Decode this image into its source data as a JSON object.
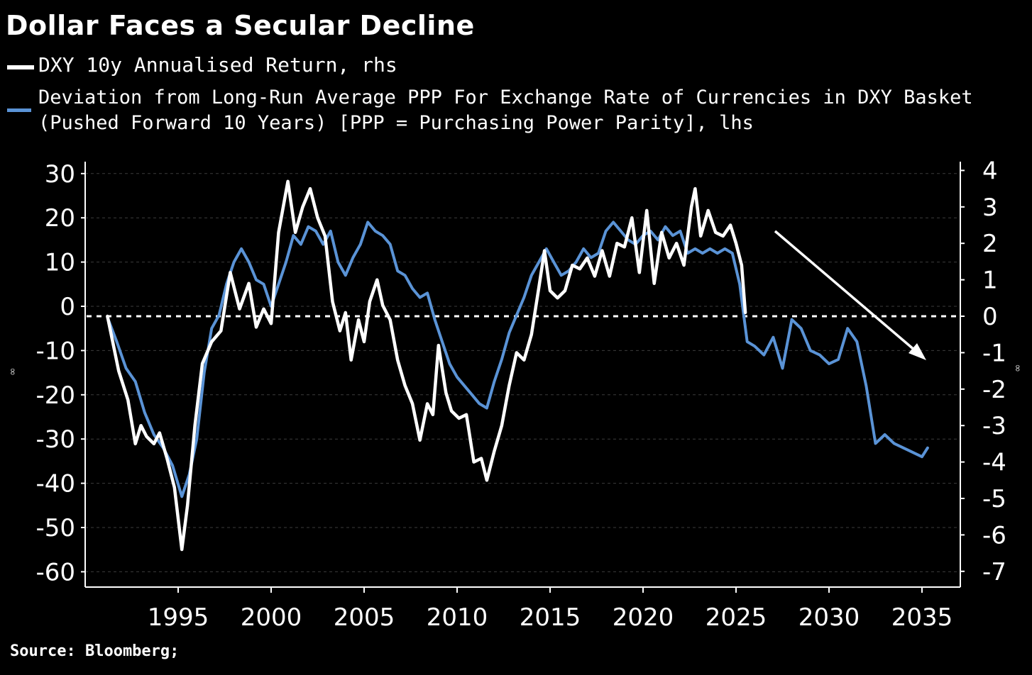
{
  "title": "Dollar Faces a Secular Decline",
  "source": "Source: Bloomberg;",
  "colors": {
    "background": "#000000",
    "white_series": "#ffffff",
    "blue_series": "#5a93d6",
    "grid": "#3c3c3c",
    "zero_line": "#ffffff",
    "arrow": "#ffffff"
  },
  "legend": [
    {
      "label": "DXY 10y Annualised Return, rhs",
      "color": "#ffffff"
    },
    {
      "label": "Deviation from Long-Run Average PPP For Exchange Rate of Currencies in DXY Basket (Pushed Forward 10 Years) [PPP = Purchasing Power Parity], lhs",
      "color": "#5a93d6"
    }
  ],
  "chart_data": {
    "type": "line",
    "title": "Dollar Faces a Secular Decline",
    "grid": true,
    "legend_position": "top-left",
    "x_range": [
      1991,
      2037
    ],
    "x_ticks": [
      1995,
      2000,
      2005,
      2010,
      2015,
      2020,
      2025,
      2030,
      2035
    ],
    "y_left": {
      "ticks": [
        30,
        20,
        10,
        0,
        -10,
        -20,
        -30,
        -40,
        -50,
        -60
      ],
      "range": [
        -63,
        32
      ]
    },
    "y_right": {
      "ticks": [
        4,
        3,
        2,
        1,
        0,
        -1,
        -2,
        -3,
        -4,
        -5,
        -6,
        -7
      ],
      "range": [
        -7.4,
        4.2
      ]
    },
    "reference_line": {
      "axis": "left",
      "value": -2.5,
      "style": "dashed",
      "note": "aligned with 0 on the right axis"
    },
    "series": [
      {
        "name": "DXY 10y Annualised Return, rhs",
        "axis": "right",
        "color": "#ffffff",
        "x": [
          1991.2,
          1991.8,
          1992.3,
          1992.7,
          1993.0,
          1993.3,
          1993.7,
          1994.0,
          1994.4,
          1994.8,
          1995.2,
          1995.5,
          1995.9,
          1996.3,
          1996.8,
          1997.3,
          1997.8,
          1998.3,
          1998.8,
          1999.2,
          1999.6,
          2000.0,
          2000.4,
          2000.9,
          2001.3,
          2001.7,
          2002.1,
          2002.5,
          2002.9,
          2003.3,
          2003.7,
          2004.0,
          2004.3,
          2004.7,
          2005.0,
          2005.3,
          2005.7,
          2006.0,
          2006.4,
          2006.8,
          2007.2,
          2007.6,
          2008.0,
          2008.4,
          2008.7,
          2009.0,
          2009.4,
          2009.7,
          2010.1,
          2010.5,
          2010.9,
          2011.3,
          2011.6,
          2012.0,
          2012.4,
          2012.8,
          2013.2,
          2013.6,
          2014.0,
          2014.4,
          2014.7,
          2015.0,
          2015.4,
          2015.8,
          2016.2,
          2016.6,
          2017.0,
          2017.4,
          2017.8,
          2018.2,
          2018.6,
          2019.0,
          2019.4,
          2019.8,
          2020.2,
          2020.6,
          2021.0,
          2021.4,
          2021.8,
          2022.2,
          2022.6,
          2022.8,
          2023.1,
          2023.5,
          2023.9,
          2024.3,
          2024.7,
          2025.0,
          2025.3,
          2025.5
        ],
        "y": [
          0.0,
          -1.5,
          -2.3,
          -3.5,
          -3.0,
          -3.3,
          -3.5,
          -3.2,
          -3.9,
          -4.7,
          -6.4,
          -5.2,
          -3.0,
          -1.3,
          -0.7,
          -0.4,
          1.2,
          0.2,
          0.9,
          -0.3,
          0.2,
          -0.2,
          2.3,
          3.7,
          2.3,
          3.0,
          3.5,
          2.7,
          2.2,
          0.4,
          -0.4,
          0.1,
          -1.2,
          -0.1,
          -0.7,
          0.4,
          1.0,
          0.3,
          -0.1,
          -1.2,
          -1.9,
          -2.4,
          -3.4,
          -2.4,
          -2.7,
          -0.8,
          -2.1,
          -2.6,
          -2.8,
          -2.7,
          -4.0,
          -3.9,
          -4.5,
          -3.7,
          -3.0,
          -1.9,
          -1.0,
          -1.2,
          -0.5,
          0.8,
          1.8,
          0.7,
          0.5,
          0.7,
          1.4,
          1.3,
          1.6,
          1.1,
          1.8,
          1.1,
          2.0,
          1.9,
          2.7,
          1.2,
          2.9,
          0.9,
          2.3,
          1.6,
          2.0,
          1.4,
          3.0,
          3.5,
          2.2,
          2.9,
          2.3,
          2.2,
          2.5,
          2.0,
          1.4,
          0.1
        ]
      },
      {
        "name": "Deviation from Long-Run Average PPP For Exchange Rate of Currencies in DXY Basket (Pushed Forward 10 Years) [PPP = Purchasing Power Parity], lhs",
        "axis": "left",
        "color": "#5a93d6",
        "x": [
          1991.2,
          1991.7,
          1992.2,
          1992.7,
          1993.2,
          1993.7,
          1994.2,
          1994.7,
          1995.2,
          1995.6,
          1996.0,
          1996.4,
          1996.8,
          1997.2,
          1997.6,
          1998.0,
          1998.4,
          1998.8,
          1999.2,
          1999.6,
          2000.0,
          2000.4,
          2000.8,
          2001.2,
          2001.6,
          2002.0,
          2002.4,
          2002.8,
          2003.2,
          2003.6,
          2004.0,
          2004.4,
          2004.8,
          2005.2,
          2005.6,
          2006.0,
          2006.4,
          2006.8,
          2007.2,
          2007.6,
          2008.0,
          2008.4,
          2008.8,
          2009.2,
          2009.6,
          2010.0,
          2010.4,
          2010.8,
          2011.2,
          2011.6,
          2012.0,
          2012.4,
          2012.8,
          2013.2,
          2013.6,
          2014.0,
          2014.4,
          2014.8,
          2015.2,
          2015.6,
          2016.0,
          2016.4,
          2016.8,
          2017.2,
          2017.6,
          2018.0,
          2018.4,
          2018.8,
          2019.2,
          2019.6,
          2020.0,
          2020.4,
          2020.8,
          2021.2,
          2021.6,
          2022.0,
          2022.4,
          2022.8,
          2023.2,
          2023.6,
          2024.0,
          2024.4,
          2024.8,
          2025.2,
          2025.6,
          2026.0,
          2026.5,
          2027.0,
          2027.5,
          2028.0,
          2028.5,
          2029.0,
          2029.5,
          2030.0,
          2030.5,
          2031.0,
          2031.5,
          2032.0,
          2032.5,
          2033.0,
          2033.5,
          2034.0,
          2034.5,
          2035.0,
          2035.3
        ],
        "y": [
          -2.5,
          -8.0,
          -14.0,
          -17.0,
          -24.0,
          -29.0,
          -32.0,
          -36.0,
          -43.0,
          -38.0,
          -30.0,
          -15.0,
          -5.0,
          -2.0,
          5.0,
          10.0,
          13.0,
          10.0,
          6.0,
          5.0,
          0.0,
          5.0,
          10.0,
          16.0,
          14.0,
          18.0,
          17.0,
          14.0,
          17.0,
          10.0,
          7.0,
          11.0,
          14.0,
          19.0,
          17.0,
          16.0,
          14.0,
          8.0,
          7.0,
          4.0,
          2.0,
          3.0,
          -3.0,
          -8.0,
          -13.0,
          -16.0,
          -18.0,
          -20.0,
          -22.0,
          -23.0,
          -17.0,
          -12.0,
          -6.0,
          -2.0,
          2.0,
          7.0,
          10.0,
          13.0,
          10.0,
          7.0,
          8.0,
          10.0,
          13.0,
          11.0,
          12.0,
          17.0,
          19.0,
          17.0,
          15.0,
          14.0,
          16.0,
          17.0,
          15.0,
          18.0,
          16.0,
          17.0,
          12.0,
          13.0,
          12.0,
          13.0,
          12.0,
          13.0,
          12.0,
          5.0,
          -8.0,
          -9.0,
          -11.0,
          -7.0,
          -14.0,
          -3.0,
          -5.0,
          -10.0,
          -11.0,
          -13.0,
          -12.0,
          -5.0,
          -8.0,
          -18.0,
          -31.0,
          -29.0,
          -31.0,
          -32.0,
          -33.0,
          -34.0,
          -32.0
        ]
      }
    ]
  }
}
